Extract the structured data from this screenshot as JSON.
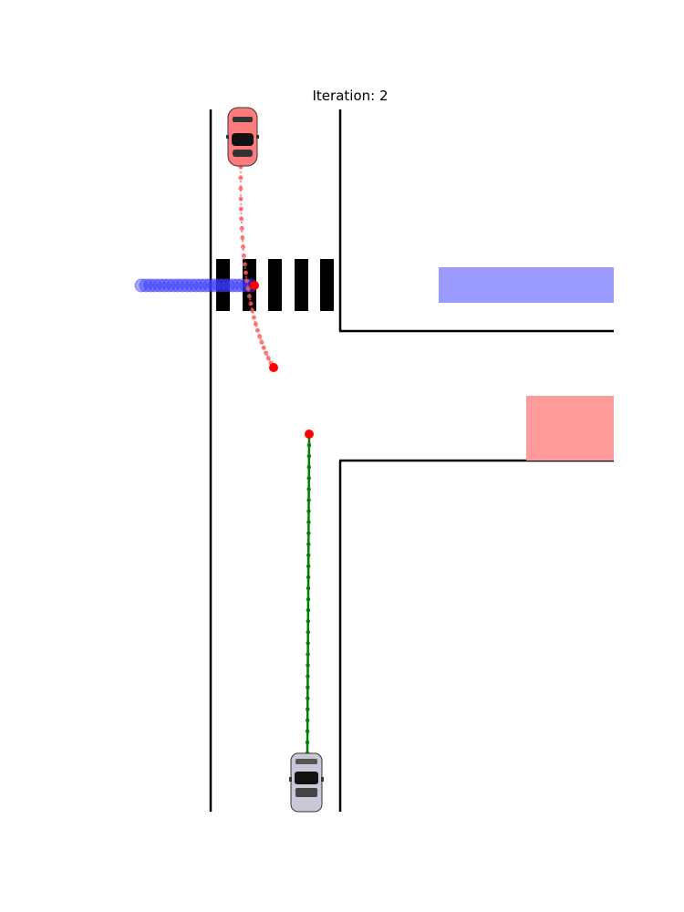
{
  "title": "Iteration: 2",
  "colors": {
    "road_line": "#000000",
    "ego_car": "#c8c8d8",
    "ego_path": "#008000",
    "other_car": "#ff7b7b",
    "other_path": "#ff5a5a",
    "pedestrian": "#3a3aff",
    "goal_marker": "#ff0000",
    "zone_blue": "#9b9bff",
    "zone_red": "#ff9b9b",
    "crosswalk": "#000000"
  }
}
